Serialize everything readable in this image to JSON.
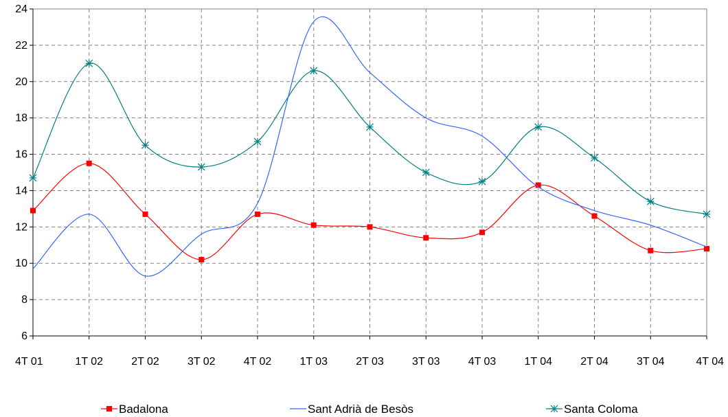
{
  "chart_data": {
    "type": "line",
    "categories": [
      "4T 01",
      "1T 02",
      "2T 02",
      "3T 02",
      "4T 02",
      "1T 03",
      "2T 03",
      "3T 03",
      "4T 03",
      "1T 04",
      "2T 04",
      "3T 04",
      "4T 04"
    ],
    "series": [
      {
        "name": "Badalona",
        "color": "#ff0000",
        "marker": "square",
        "values": [
          12.9,
          15.5,
          12.7,
          10.2,
          12.7,
          12.1,
          12.0,
          11.4,
          11.7,
          14.3,
          12.6,
          10.7,
          10.8
        ]
      },
      {
        "name": "Sant Adrià de Besòs",
        "color": "#3366ff",
        "marker": "none",
        "values": [
          9.7,
          12.7,
          9.3,
          11.6,
          13.3,
          23.3,
          20.5,
          18.0,
          17.0,
          14.2,
          12.9,
          12.1,
          10.9
        ]
      },
      {
        "name": "Santa Coloma",
        "color": "#008080",
        "marker": "asterisk",
        "values": [
          14.7,
          21.0,
          16.5,
          15.3,
          16.7,
          20.6,
          17.5,
          15.0,
          14.5,
          17.5,
          15.8,
          13.4,
          12.7
        ]
      }
    ],
    "yticks": [
      6,
      8,
      10,
      12,
      14,
      16,
      18,
      20,
      22,
      24
    ],
    "ylim": [
      6,
      24
    ],
    "grid": true,
    "smooth": true,
    "legend_position": "bottom"
  }
}
